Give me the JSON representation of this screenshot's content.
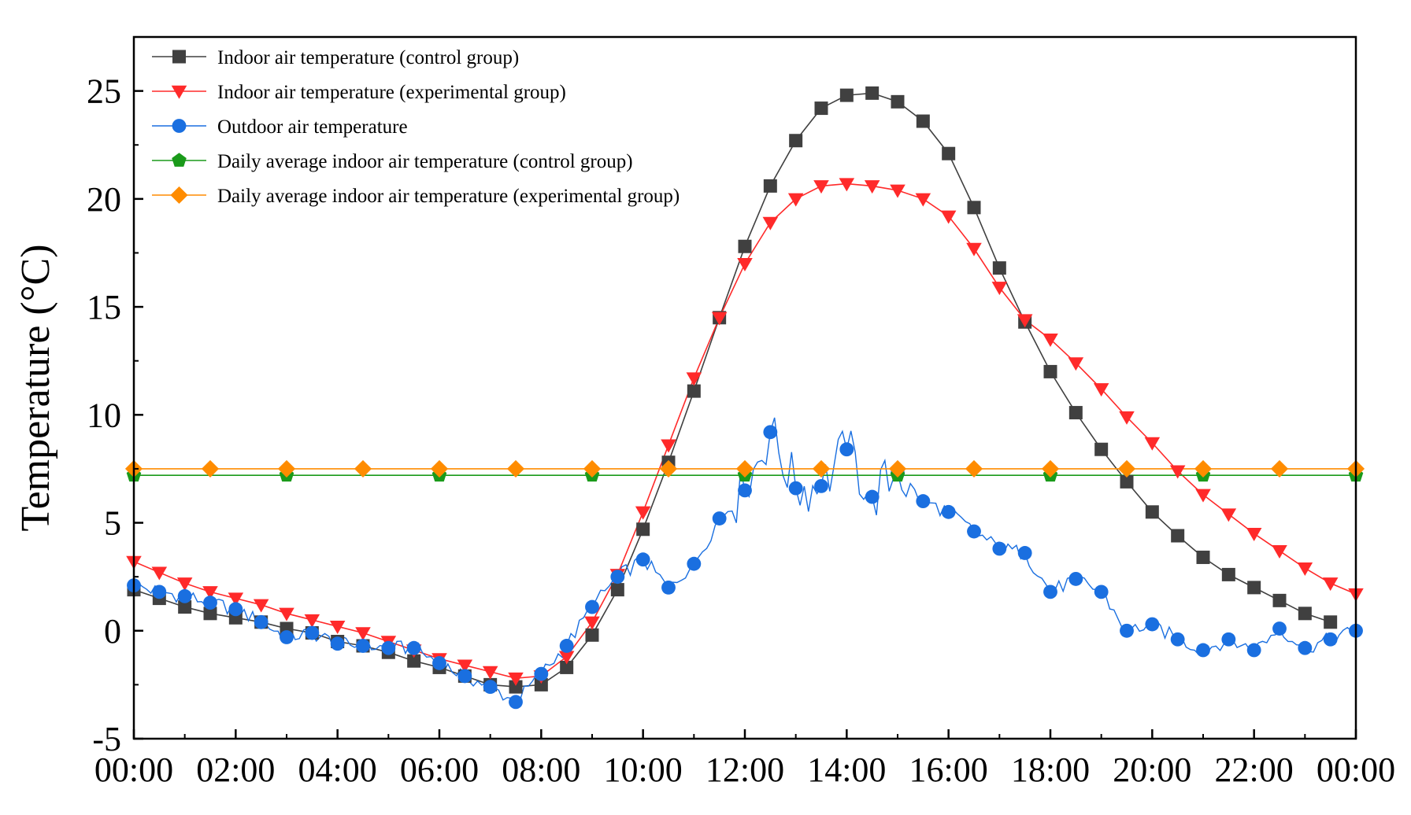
{
  "chart_data": {
    "type": "line",
    "title": "",
    "xlabel": "",
    "ylabel": "Temperature (°C)",
    "xlim": [
      0,
      24
    ],
    "ylim": [
      -5,
      27.5
    ],
    "x_ticks": [
      0,
      2,
      4,
      6,
      8,
      10,
      12,
      14,
      16,
      18,
      20,
      22,
      24
    ],
    "x_tick_labels": [
      "00:00",
      "02:00",
      "04:00",
      "06:00",
      "08:00",
      "10:00",
      "12:00",
      "14:00",
      "16:00",
      "18:00",
      "20:00",
      "22:00",
      "00:00"
    ],
    "y_ticks": [
      -5,
      0,
      5,
      10,
      15,
      20,
      25
    ],
    "y_tick_labels": [
      "-5",
      "0",
      "5",
      "10",
      "15",
      "20",
      "25"
    ],
    "grid": false,
    "legend_position": "top-left",
    "series": [
      {
        "name": "Indoor air temperature (control group)",
        "color": "#404040",
        "marker": "square",
        "x": [
          0,
          0.5,
          1,
          1.5,
          2,
          2.5,
          3,
          3.5,
          4,
          4.5,
          5,
          5.5,
          6,
          6.5,
          7,
          7.5,
          8,
          8.5,
          9,
          9.5,
          10,
          10.5,
          11,
          11.5,
          12,
          12.5,
          13,
          13.5,
          14,
          14.5,
          15,
          15.5,
          16,
          16.5,
          17,
          17.5,
          18,
          18.5,
          19,
          19.5,
          20,
          20.5,
          21,
          21.5,
          22,
          22.5,
          23,
          23.5
        ],
        "y": [
          1.9,
          1.5,
          1.1,
          0.8,
          0.6,
          0.4,
          0.1,
          -0.1,
          -0.5,
          -0.7,
          -1.0,
          -1.4,
          -1.7,
          -2.1,
          -2.5,
          -2.6,
          -2.5,
          -1.7,
          -0.2,
          1.9,
          4.7,
          7.8,
          11.1,
          14.5,
          17.8,
          20.6,
          22.7,
          24.2,
          24.8,
          24.9,
          24.5,
          23.6,
          22.1,
          19.6,
          16.8,
          14.3,
          12.0,
          10.1,
          8.4,
          6.9,
          5.5,
          4.4,
          3.4,
          2.6,
          2.0,
          1.4,
          0.8,
          0.4
        ]
      },
      {
        "name": "Indoor air temperature (experimental group)",
        "color": "#ff2a2a",
        "marker": "triangle-down",
        "x": [
          0,
          0.5,
          1,
          1.5,
          2,
          2.5,
          3,
          3.5,
          4,
          4.5,
          5,
          5.5,
          6,
          6.5,
          7,
          7.5,
          8,
          8.5,
          9,
          9.5,
          10,
          10.5,
          11,
          11.5,
          12,
          12.5,
          13,
          13.5,
          14,
          14.5,
          15,
          15.5,
          16,
          16.5,
          17,
          17.5,
          18,
          18.5,
          19,
          19.5,
          20,
          20.5,
          21,
          21.5,
          22,
          22.5,
          23,
          23.5,
          24
        ],
        "y": [
          3.2,
          2.7,
          2.2,
          1.8,
          1.5,
          1.2,
          0.8,
          0.5,
          0.2,
          -0.1,
          -0.5,
          -0.9,
          -1.3,
          -1.6,
          -1.9,
          -2.2,
          -2.1,
          -1.2,
          0.4,
          2.6,
          5.5,
          8.6,
          11.7,
          14.5,
          17.0,
          18.9,
          20.0,
          20.6,
          20.7,
          20.6,
          20.4,
          20.0,
          19.2,
          17.7,
          15.9,
          14.4,
          13.5,
          12.4,
          11.2,
          9.9,
          8.7,
          7.4,
          6.3,
          5.4,
          4.5,
          3.7,
          2.9,
          2.2,
          1.7
        ]
      },
      {
        "name": "Outdoor air temperature",
        "color": "#1a6fe0",
        "marker": "circle",
        "x": [
          0,
          0.5,
          1,
          1.5,
          2,
          2.5,
          3,
          3.5,
          4,
          4.5,
          5,
          5.5,
          6,
          6.5,
          7,
          7.5,
          8,
          8.5,
          9,
          9.5,
          10,
          10.5,
          11,
          11.5,
          12,
          12.5,
          13,
          13.5,
          14,
          14.5,
          15,
          15.5,
          16,
          16.5,
          17,
          17.5,
          18,
          18.5,
          19,
          19.5,
          20,
          20.5,
          21,
          21.5,
          22,
          22.5,
          23,
          23.5,
          24
        ],
        "y": [
          2.1,
          1.8,
          1.6,
          1.3,
          1.0,
          0.4,
          -0.3,
          -0.1,
          -0.6,
          -0.7,
          -0.8,
          -0.8,
          -1.5,
          -2.1,
          -2.6,
          -3.3,
          -2.0,
          -0.7,
          1.1,
          2.5,
          3.3,
          2.0,
          3.1,
          5.2,
          6.5,
          9.2,
          6.6,
          6.7,
          8.4,
          6.2,
          7.3,
          6.0,
          5.5,
          4.6,
          3.8,
          3.6,
          1.8,
          2.4,
          1.8,
          0.0,
          0.3,
          -0.4,
          -0.9,
          -0.4,
          -0.9,
          0.1,
          -0.8,
          -0.4,
          0.0
        ]
      },
      {
        "name": "Daily average indoor air temperature (control group)",
        "color": "#1a9a1a",
        "marker": "pentagon",
        "x": [
          0,
          3,
          6,
          9,
          12,
          15,
          18,
          21,
          24
        ],
        "y": [
          7.2,
          7.2,
          7.2,
          7.2,
          7.2,
          7.2,
          7.2,
          7.2,
          7.2
        ]
      },
      {
        "name": "Daily average indoor air temperature (experimental group)",
        "color": "#ff8c00",
        "marker": "diamond",
        "x": [
          0,
          1.5,
          3,
          4.5,
          6,
          7.5,
          9,
          10.5,
          12,
          13.5,
          15,
          16.5,
          18,
          19.5,
          21,
          22.5,
          24
        ],
        "y": [
          7.5,
          7.5,
          7.5,
          7.5,
          7.5,
          7.5,
          7.5,
          7.5,
          7.5,
          7.5,
          7.5,
          7.5,
          7.5,
          7.5,
          7.5,
          7.5,
          7.5
        ]
      }
    ]
  }
}
